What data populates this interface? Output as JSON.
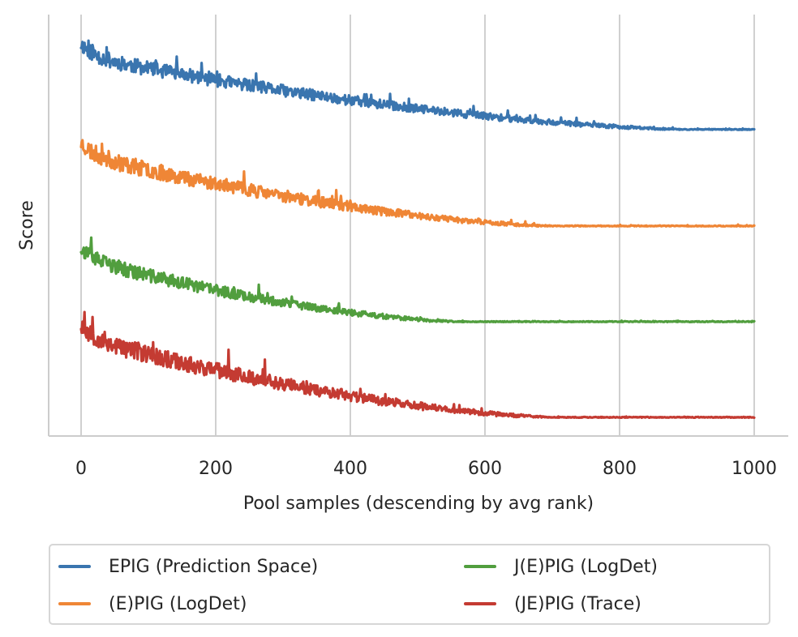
{
  "chart_data": {
    "type": "line",
    "title": "",
    "xlabel": "Pool samples (descending by avg rank)",
    "ylabel": "Score",
    "xlim": [
      -50,
      1050
    ],
    "ylim": [
      0,
      1
    ],
    "xticks": [
      0,
      200,
      400,
      600,
      800,
      1000
    ],
    "xtick_labels": [
      "0",
      "200",
      "400",
      "600",
      "800",
      "1000"
    ],
    "yticks": [],
    "grid": "vertical",
    "legend_position": "bottom-outside",
    "legend_columns": 2,
    "x_range": [
      0,
      1000
    ],
    "series": [
      {
        "name": "EPIG (Prediction Space)",
        "color": "#3a75af",
        "start": 0.923,
        "mid": 0.8,
        "end": 0.727,
        "noise": 0.035,
        "plateau_x": 900,
        "seed": 11
      },
      {
        "name": "(E)PIG (LogDet)",
        "color": "#ef8636",
        "start": 0.688,
        "mid": 0.56,
        "end": 0.498,
        "noise": 0.04,
        "plateau_x": 700,
        "seed": 23
      },
      {
        "name": "J(E)PIG (LogDet)",
        "color": "#519e3e",
        "start": 0.438,
        "mid": 0.31,
        "end": 0.271,
        "noise": 0.035,
        "plateau_x": 560,
        "seed": 37
      },
      {
        "name": "(JE)PIG (Trace)",
        "color": "#c43b32",
        "start": 0.256,
        "mid": 0.1,
        "end": 0.044,
        "noise": 0.045,
        "plateau_x": 700,
        "seed": 53
      }
    ]
  },
  "legend": {
    "items": [
      {
        "label": "EPIG (Prediction Space)",
        "color": "#3a75af"
      },
      {
        "label": "(E)PIG (LogDet)",
        "color": "#ef8636"
      },
      {
        "label": "J(E)PIG (LogDet)",
        "color": "#519e3e"
      },
      {
        "label": "(JE)PIG (Trace)",
        "color": "#c43b32"
      }
    ]
  }
}
